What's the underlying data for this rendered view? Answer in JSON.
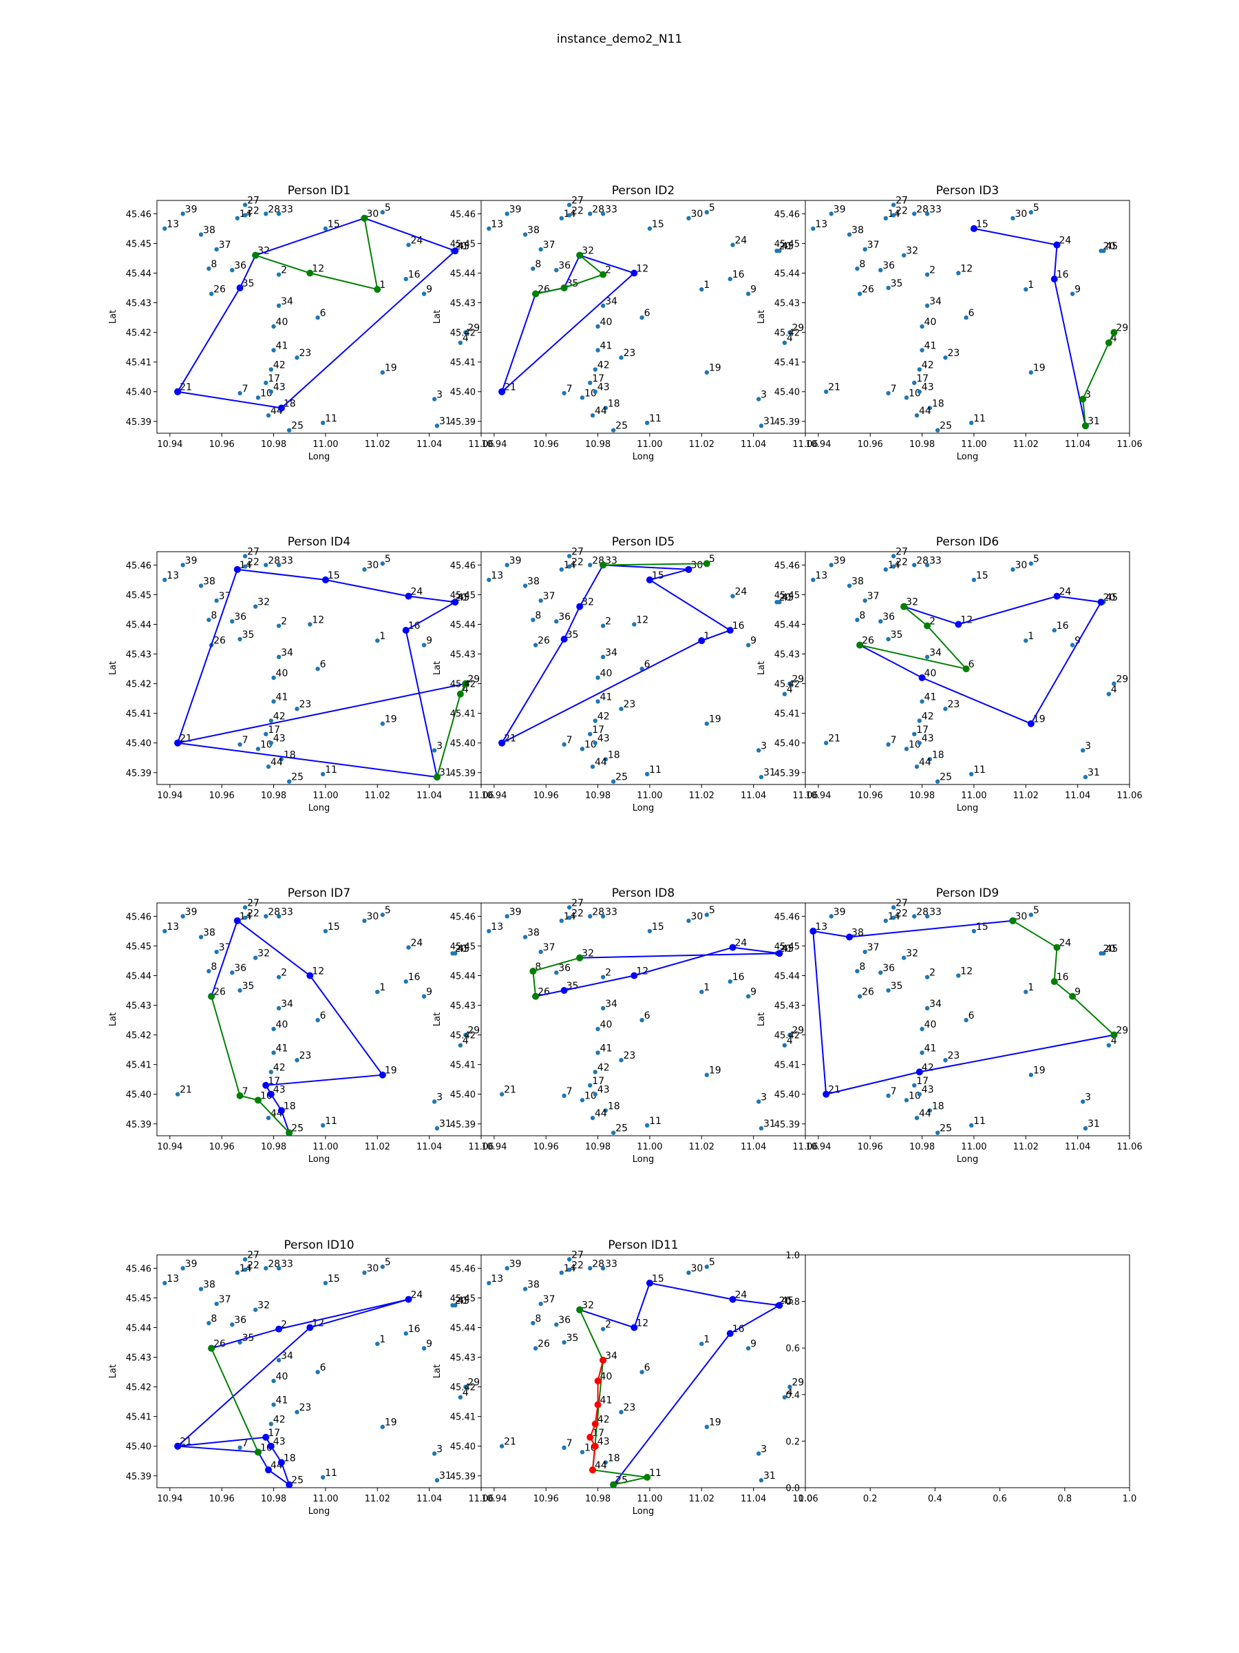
{
  "figure_title": "instance_demo2_N11",
  "colors": {
    "point": "#1f77b4",
    "blue": "#0000ff",
    "green": "#008000",
    "red": "#ff0000"
  },
  "chart_data": {
    "type": "scatter",
    "xlabel": "Long",
    "ylabel": "Lat",
    "xlim": [
      10.935,
      11.06
    ],
    "ylim": [
      45.386,
      45.4645
    ],
    "x_ticks": [
      "10.94",
      "10.96",
      "10.98",
      "11.00",
      "11.02",
      "11.04",
      "11.06"
    ],
    "y_ticks": [
      "45.39",
      "45.40",
      "45.41",
      "45.42",
      "45.43",
      "45.44",
      "45.45",
      "45.46"
    ],
    "empty_ticks": [
      "0.0",
      "0.2",
      "0.4",
      "0.6",
      "0.8",
      "1.0"
    ],
    "nodes": [
      {
        "id": "1",
        "x": 11.02,
        "y": 45.4345
      },
      {
        "id": "2",
        "x": 10.982,
        "y": 45.4395
      },
      {
        "id": "3",
        "x": 11.042,
        "y": 45.3975
      },
      {
        "id": "4",
        "x": 11.052,
        "y": 45.4165
      },
      {
        "id": "5",
        "x": 11.022,
        "y": 45.4605
      },
      {
        "id": "6",
        "x": 10.997,
        "y": 45.425
      },
      {
        "id": "7",
        "x": 10.967,
        "y": 45.3995
      },
      {
        "id": "8",
        "x": 10.955,
        "y": 45.4415
      },
      {
        "id": "9",
        "x": 11.038,
        "y": 45.433
      },
      {
        "id": "10",
        "x": 10.974,
        "y": 45.398
      },
      {
        "id": "11",
        "x": 10.999,
        "y": 45.3895
      },
      {
        "id": "12",
        "x": 10.994,
        "y": 45.44
      },
      {
        "id": "13",
        "x": 10.938,
        "y": 45.455
      },
      {
        "id": "14",
        "x": 10.966,
        "y": 45.4585
      },
      {
        "id": "15",
        "x": 11.0,
        "y": 45.455
      },
      {
        "id": "16",
        "x": 11.031,
        "y": 45.438
      },
      {
        "id": "17",
        "x": 10.977,
        "y": 45.403
      },
      {
        "id": "18",
        "x": 10.983,
        "y": 45.3945
      },
      {
        "id": "19",
        "x": 11.022,
        "y": 45.4065
      },
      {
        "id": "20",
        "x": 11.049,
        "y": 45.4475
      },
      {
        "id": "21",
        "x": 10.943,
        "y": 45.4
      },
      {
        "id": "22",
        "x": 10.969,
        "y": 45.4595
      },
      {
        "id": "23",
        "x": 10.989,
        "y": 45.4115
      },
      {
        "id": "24",
        "x": 11.032,
        "y": 45.4495
      },
      {
        "id": "25",
        "x": 10.986,
        "y": 45.387
      },
      {
        "id": "26",
        "x": 10.956,
        "y": 45.433
      },
      {
        "id": "27",
        "x": 10.969,
        "y": 45.463
      },
      {
        "id": "28",
        "x": 10.977,
        "y": 45.46
      },
      {
        "id": "29",
        "x": 11.054,
        "y": 45.42
      },
      {
        "id": "30",
        "x": 11.015,
        "y": 45.4585
      },
      {
        "id": "31",
        "x": 11.043,
        "y": 45.3885
      },
      {
        "id": "32",
        "x": 10.973,
        "y": 45.446
      },
      {
        "id": "33",
        "x": 10.982,
        "y": 45.46
      },
      {
        "id": "34",
        "x": 10.982,
        "y": 45.429
      },
      {
        "id": "35",
        "x": 10.967,
        "y": 45.435
      },
      {
        "id": "36",
        "x": 10.964,
        "y": 45.441
      },
      {
        "id": "37",
        "x": 10.958,
        "y": 45.448
      },
      {
        "id": "38",
        "x": 10.952,
        "y": 45.453
      },
      {
        "id": "39",
        "x": 10.945,
        "y": 45.46
      },
      {
        "id": "40",
        "x": 10.98,
        "y": 45.422
      },
      {
        "id": "41",
        "x": 10.98,
        "y": 45.414
      },
      {
        "id": "42",
        "x": 10.979,
        "y": 45.4075
      },
      {
        "id": "43",
        "x": 10.979,
        "y": 45.4
      },
      {
        "id": "44",
        "x": 10.978,
        "y": 45.392
      },
      {
        "id": "45",
        "x": 11.05,
        "y": 45.4475
      }
    ],
    "panels": [
      {
        "title": "Person ID1",
        "blue": [
          "21",
          "18",
          "45",
          "30",
          "32",
          "35",
          "21"
        ],
        "green": [
          "30",
          "1",
          "12",
          "32"
        ],
        "red": []
      },
      {
        "title": "Person ID2",
        "blue": [
          "21",
          "26",
          "35",
          "32",
          "12",
          "21"
        ],
        "green": [
          "32",
          "2",
          "35",
          "26"
        ],
        "red": []
      },
      {
        "title": "Person ID3",
        "blue": [
          "31",
          "16",
          "24",
          "15",
          "24"
        ],
        "green": [
          "31",
          "3",
          "4",
          "29"
        ],
        "red": []
      },
      {
        "title": "Person ID4",
        "blue": [
          "21",
          "14",
          "15",
          "24",
          "45",
          "16",
          "31",
          "21",
          "29"
        ],
        "green": [
          "31",
          "4",
          "29"
        ],
        "red": []
      },
      {
        "title": "Person ID5",
        "blue": [
          "21",
          "35",
          "32",
          "33",
          "30",
          "15",
          "16",
          "1",
          "21"
        ],
        "green": [
          "33",
          "5"
        ],
        "red": []
      },
      {
        "title": "Person ID6",
        "blue": [
          "26",
          "40",
          "19",
          "20",
          "24",
          "12",
          "32"
        ],
        "green": [
          "26",
          "6",
          "2",
          "32"
        ],
        "red": []
      },
      {
        "title": "Person ID7",
        "blue": [
          "25",
          "18",
          "43",
          "17",
          "19",
          "12",
          "14",
          "26"
        ],
        "green": [
          "26",
          "7",
          "10",
          "25"
        ],
        "red": []
      },
      {
        "title": "Person ID8",
        "blue": [
          "26",
          "35",
          "12",
          "24",
          "45",
          "32"
        ],
        "green": [
          "32",
          "8",
          "26"
        ],
        "red": []
      },
      {
        "title": "Person ID9",
        "blue": [
          "30",
          "38",
          "13",
          "21",
          "42",
          "29"
        ],
        "green": [
          "30",
          "24",
          "16",
          "9",
          "29"
        ],
        "red": []
      },
      {
        "title": "Person ID10",
        "blue": [
          "21",
          "17",
          "43",
          "18",
          "25",
          "44",
          "10",
          "21",
          "12",
          "24",
          "2",
          "26"
        ],
        "green": [
          "26",
          "10"
        ],
        "red": []
      },
      {
        "title": "Person ID11",
        "blue": [
          "25",
          "16",
          "45",
          "24",
          "15",
          "12",
          "32"
        ],
        "green": [
          "32",
          "34",
          "44",
          "11",
          "25"
        ],
        "red": [
          "34",
          "40",
          "41",
          "42",
          "17",
          "43",
          "44"
        ]
      }
    ]
  }
}
